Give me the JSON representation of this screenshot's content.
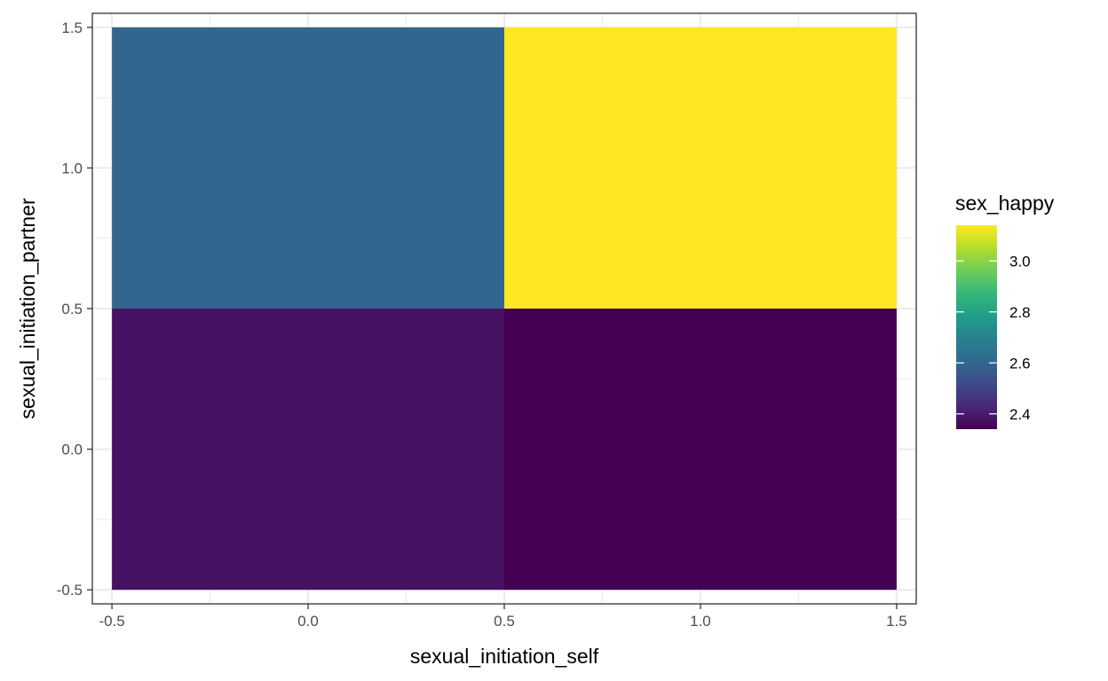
{
  "chart_data": {
    "type": "heatmap",
    "xlabel": "sexual_initiation_self",
    "ylabel": "sexual_initiation_partner",
    "xlim": [
      -0.55,
      1.55
    ],
    "ylim": [
      -0.55,
      1.55
    ],
    "x_ticks": [
      -0.5,
      0.0,
      0.5,
      1.0,
      1.5
    ],
    "y_ticks": [
      -0.5,
      0.0,
      0.5,
      1.0,
      1.5
    ],
    "x_tick_labels": [
      "-0.5",
      "0.0",
      "0.5",
      "1.0",
      "1.5"
    ],
    "y_tick_labels": [
      "-0.5",
      "0.0",
      "0.5",
      "1.0",
      "1.5"
    ],
    "grid": true,
    "cells": [
      {
        "x": 0,
        "y": 0,
        "value": 2.38
      },
      {
        "x": 1,
        "y": 0,
        "value": 2.34
      },
      {
        "x": 0,
        "y": 1,
        "value": 2.6
      },
      {
        "x": 1,
        "y": 1,
        "value": 3.14
      }
    ],
    "legend": {
      "title": "sex_happy",
      "position": "right",
      "range": [
        2.34,
        3.14
      ],
      "breaks": [
        2.4,
        2.6,
        2.8,
        3.0
      ],
      "break_labels": [
        "2.4",
        "2.6",
        "2.8",
        "3.0"
      ],
      "colormap": "viridis"
    },
    "colors": {
      "viridis": [
        "#440154",
        "#482878",
        "#3E4A89",
        "#31688E",
        "#26828E",
        "#1F9E89",
        "#35B779",
        "#6DCD59",
        "#B4DE2C",
        "#FDE725"
      ]
    }
  }
}
